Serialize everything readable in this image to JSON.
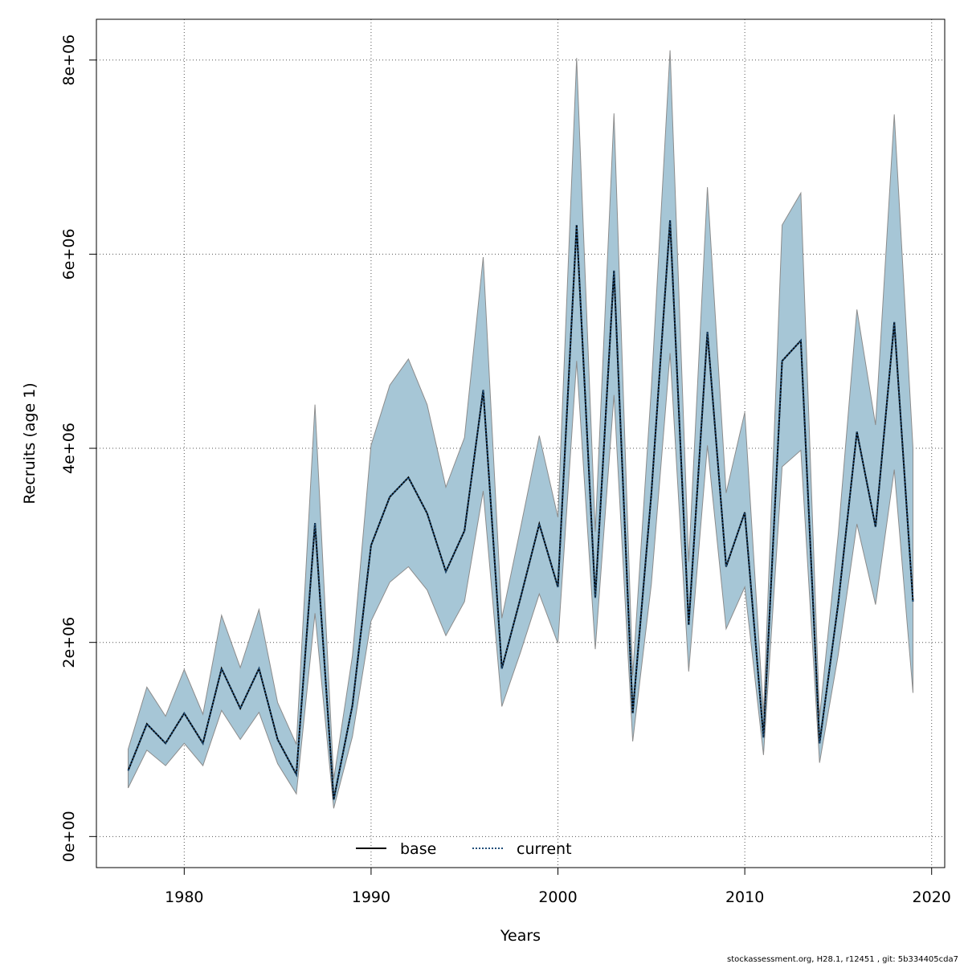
{
  "chart_data": {
    "type": "line",
    "xlabel": "Years",
    "ylabel": "Recruits (age 1)",
    "xlim": [
      1975.3,
      2020.7
    ],
    "ylim": [
      -320000,
      8420000
    ],
    "x_ticks": [
      1980,
      1990,
      2000,
      2010,
      2020
    ],
    "x_tick_labels": [
      "1980",
      "1990",
      "2000",
      "2010",
      "2020"
    ],
    "y_ticks": [
      0,
      2000000,
      4000000,
      6000000,
      8000000
    ],
    "y_tick_labels": [
      "0e+00",
      "2e+06",
      "4e+06",
      "6e+06",
      "8e+06"
    ],
    "grid": true,
    "legend_position": "bottom-center",
    "band_color": "#a6c6d6",
    "band_edge_color": "#8c8c8c",
    "x": [
      1977,
      1978,
      1979,
      1980,
      1981,
      1982,
      1983,
      1984,
      1985,
      1986,
      1987,
      1988,
      1989,
      1990,
      1991,
      1992,
      1993,
      1994,
      1995,
      1996,
      1997,
      1998,
      1999,
      2000,
      2001,
      2002,
      2003,
      2004,
      2005,
      2006,
      2007,
      2008,
      2009,
      2010,
      2011,
      2012,
      2013,
      2014,
      2015,
      2016,
      2017,
      2018,
      2019
    ],
    "series": [
      {
        "name": "base",
        "style": "solid",
        "color": "#000000",
        "values": [
          680000,
          1160000,
          960000,
          1270000,
          960000,
          1730000,
          1320000,
          1730000,
          1000000,
          640000,
          3230000,
          380000,
          1350000,
          3000000,
          3500000,
          3700000,
          3330000,
          2730000,
          3150000,
          4600000,
          1730000,
          2460000,
          3220000,
          2570000,
          6300000,
          2460000,
          5830000,
          1270000,
          3530000,
          6350000,
          2180000,
          5200000,
          2780000,
          3340000,
          1020000,
          4900000,
          5110000,
          960000,
          2400000,
          4170000,
          3190000,
          5300000,
          2420000
        ]
      },
      {
        "name": "current",
        "style": "dotted",
        "color": "#1f4e79",
        "values": [
          680000,
          1160000,
          960000,
          1270000,
          960000,
          1730000,
          1320000,
          1730000,
          1000000,
          640000,
          3230000,
          380000,
          1350000,
          3000000,
          3500000,
          3700000,
          3330000,
          2730000,
          3150000,
          4600000,
          1730000,
          2460000,
          3220000,
          2570000,
          6300000,
          2460000,
          5830000,
          1270000,
          3530000,
          6350000,
          2180000,
          5200000,
          2780000,
          3340000,
          1020000,
          4900000,
          5110000,
          960000,
          2400000,
          4170000,
          3190000,
          5300000,
          2420000
        ]
      }
    ],
    "band_lower": [
      500000,
      890000,
      730000,
      960000,
      730000,
      1300000,
      1000000,
      1280000,
      750000,
      440000,
      2300000,
      290000,
      1030000,
      2220000,
      2620000,
      2780000,
      2540000,
      2070000,
      2420000,
      3560000,
      1340000,
      1900000,
      2500000,
      1990000,
      4900000,
      1930000,
      4550000,
      980000,
      2600000,
      4980000,
      1700000,
      4030000,
      2140000,
      2570000,
      840000,
      3810000,
      3980000,
      760000,
      1870000,
      3220000,
      2390000,
      3780000,
      1480000
    ],
    "band_upper": [
      900000,
      1540000,
      1240000,
      1720000,
      1260000,
      2280000,
      1740000,
      2340000,
      1380000,
      950000,
      4450000,
      590000,
      1860000,
      4030000,
      4650000,
      4920000,
      4450000,
      3600000,
      4110000,
      5970000,
      2250000,
      3180000,
      4130000,
      3290000,
      8020000,
      3140000,
      7450000,
      1660000,
      4620000,
      8100000,
      2830000,
      6690000,
      3540000,
      4370000,
      1260000,
      6300000,
      6630000,
      1230000,
      3110000,
      5430000,
      4240000,
      7440000,
      4000000
    ]
  },
  "footer": "stockassessment.org, H28.1, r12451 , git: 5b334405cda7"
}
